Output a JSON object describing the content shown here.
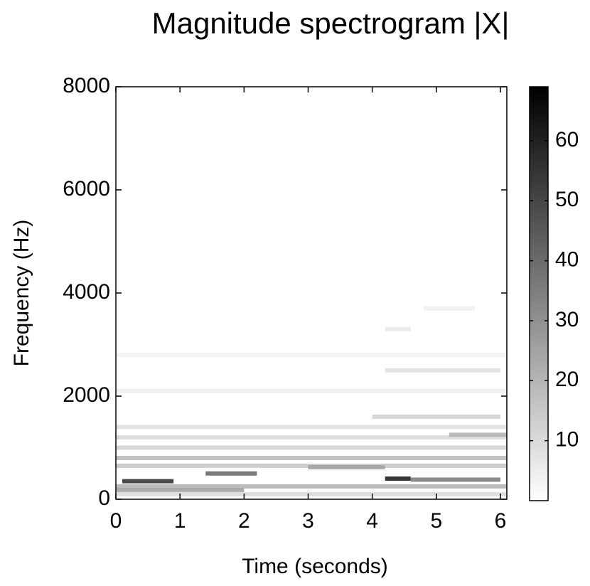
{
  "chart_data": {
    "type": "spectrogram",
    "title": "Magnitude spectrogram |X|",
    "xlabel": "Time (seconds)",
    "ylabel": "Frequency  (Hz)",
    "xlim": [
      0,
      6.1
    ],
    "xticks": [
      0,
      1,
      2,
      3,
      4,
      5,
      6
    ],
    "ylim": [
      0,
      8000
    ],
    "yticks": [
      0,
      2000,
      4000,
      6000,
      8000
    ],
    "clim": [
      0,
      69
    ],
    "cticks": [
      10,
      20,
      30,
      40,
      50,
      60
    ],
    "colormap": "gray-reversed",
    "streaks": {
      "t0": [
        0.1,
        1.4,
        0,
        4.2,
        4.6,
        0,
        0,
        3.0,
        0,
        0,
        0,
        4.0,
        0,
        4.2,
        0,
        4.2,
        4.8,
        5.2,
        0,
        0
      ],
      "t1": [
        0.9,
        2.2,
        6.1,
        4.6,
        6.0,
        6.1,
        6.1,
        4.2,
        6.1,
        6.1,
        6.1,
        6.0,
        6.1,
        6.0,
        6.1,
        4.6,
        5.6,
        6.1,
        2.0,
        6.1
      ],
      "f": [
        350,
        500,
        250,
        400,
        380,
        650,
        800,
        620,
        1000,
        1200,
        1400,
        1600,
        2100,
        2500,
        2800,
        3300,
        3700,
        1250,
        180,
        100
      ],
      "values": [
        55,
        40,
        20,
        60,
        35,
        15,
        18,
        25,
        12,
        10,
        8,
        12,
        5,
        8,
        3,
        6,
        4,
        20,
        25,
        10
      ]
    }
  }
}
